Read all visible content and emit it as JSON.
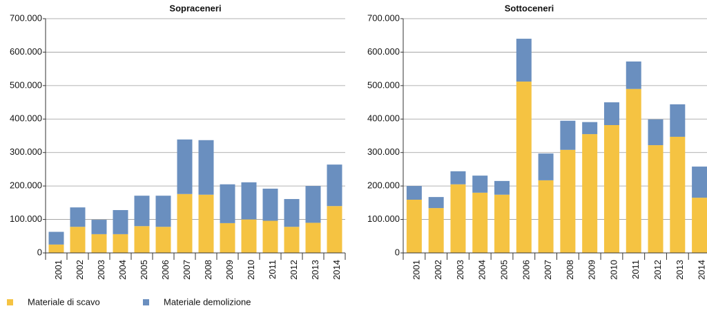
{
  "chart_data": [
    {
      "type": "bar",
      "stacked": true,
      "title": "Sopraceneri",
      "categories": [
        "2001",
        "2002",
        "2003",
        "2004",
        "2005",
        "2006",
        "2007",
        "2008",
        "2009",
        "2010",
        "2011",
        "2012",
        "2013",
        "2014"
      ],
      "series": [
        {
          "name": "Materiale di scavo",
          "color": "#f5c342",
          "values": [
            25000,
            78000,
            56000,
            56000,
            80000,
            78000,
            176000,
            174000,
            89000,
            100000,
            96000,
            78000,
            90000,
            140000
          ]
        },
        {
          "name": "Materiale demolizione",
          "color": "#6a8fbf",
          "values": [
            38000,
            58000,
            43000,
            72000,
            91000,
            93000,
            163000,
            163000,
            116000,
            111000,
            96000,
            83000,
            110000,
            124000
          ]
        }
      ],
      "ylim": [
        0,
        700000
      ],
      "yticks": [
        0,
        {
          "value": 100000,
          "label": "100.000"
        },
        {
          "value": 200000,
          "label": "200.000"
        },
        {
          "value": 300000,
          "label": "300.000"
        },
        {
          "value": 400000,
          "label": "400.000"
        },
        {
          "value": 500000,
          "label": "500.000"
        },
        {
          "value": 600000,
          "label": "600.000"
        },
        {
          "value": 700000,
          "label": "700.000"
        }
      ],
      "grid": true,
      "legend": "bottom-left"
    },
    {
      "type": "bar",
      "stacked": true,
      "title": "Sottoceneri",
      "categories": [
        "2001",
        "2002",
        "2003",
        "2004",
        "2005",
        "2006",
        "2007",
        "2008",
        "2009",
        "2010",
        "2011",
        "2012",
        "2013",
        "2014"
      ],
      "series": [
        {
          "color": "#f5c342",
          "values": [
            159000,
            134000,
            205000,
            180000,
            174000,
            512000,
            217000,
            308000,
            355000,
            382000,
            490000,
            322000,
            347000,
            165000
          ]
        },
        {
          "color": "#6a8fbf",
          "values": [
            41000,
            33000,
            39000,
            51000,
            41000,
            128000,
            80000,
            87000,
            36000,
            68000,
            82000,
            77000,
            97000,
            93000
          ]
        }
      ],
      "ylim": [
        0,
        700000
      ],
      "yticks": [
        0,
        {
          "value": 100000,
          "label": "100.000"
        },
        {
          "value": 200000,
          "label": "200.000"
        },
        {
          "value": 300000,
          "label": "300.000"
        },
        {
          "value": 400000,
          "label": "400.000"
        },
        {
          "value": 500000,
          "label": "500.000"
        },
        {
          "value": 600000,
          "label": "600.000"
        },
        {
          "value": 700000,
          "label": "700.000"
        }
      ],
      "grid": true
    }
  ]
}
